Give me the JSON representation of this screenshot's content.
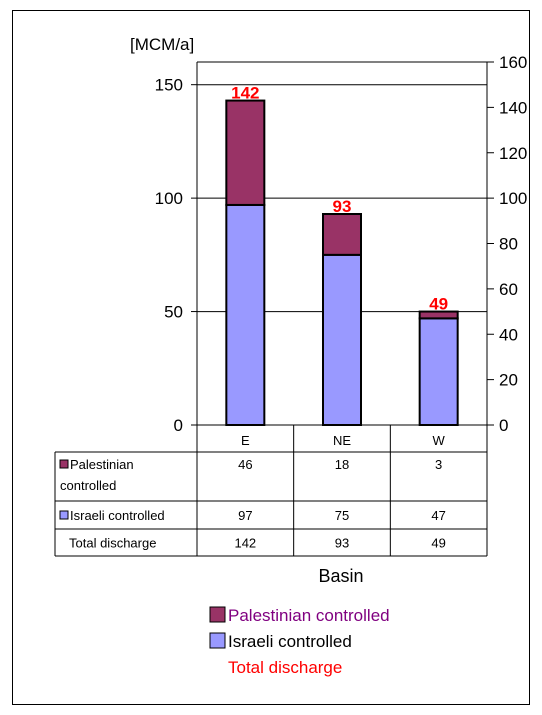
{
  "chart_data": {
    "type": "bar",
    "stacked": true,
    "title": "",
    "ylabel": "[MCM/a]",
    "xlabel": "Basin",
    "ylim": [
      0,
      160
    ],
    "y2lim": [
      0,
      160
    ],
    "left_ticks": [
      "0",
      "50",
      "100",
      "150"
    ],
    "right_ticks": [
      "0",
      "20",
      "40",
      "60",
      "80",
      "100",
      "120",
      "140",
      "160"
    ],
    "categories": [
      "E",
      "NE",
      "W"
    ],
    "series": [
      {
        "name": "Israeli controlled",
        "values": [
          97,
          75,
          47
        ],
        "color": "#9999ff"
      },
      {
        "name": "Palestinian controlled",
        "values": [
          46,
          18,
          3
        ],
        "color": "#993366"
      }
    ],
    "total": {
      "name": "Total discharge",
      "values": [
        142,
        93,
        49
      ],
      "color": "#ff0000"
    },
    "table": {
      "rows": [
        {
          "label_lines": [
            "Palestinian",
            "controlled"
          ],
          "color": "#993366",
          "values": [
            "46",
            "18",
            "3"
          ]
        },
        {
          "label_lines": [
            "Israeli controlled"
          ],
          "color": "#9999ff",
          "values": [
            "97",
            "75",
            "47"
          ]
        },
        {
          "label_lines": [
            "Total discharge"
          ],
          "color": null,
          "values": [
            "142",
            "93",
            "49"
          ]
        }
      ]
    },
    "legend": [
      {
        "label": "Palestinian controlled",
        "color": "#993366",
        "text_color": "#800080"
      },
      {
        "label": "Israeli controlled",
        "color": "#9999ff",
        "text_color": "#000000"
      },
      {
        "label": "Total discharge",
        "color": null,
        "text_color": "#ff0000"
      }
    ],
    "grid": true,
    "legend_position": "bottom"
  }
}
